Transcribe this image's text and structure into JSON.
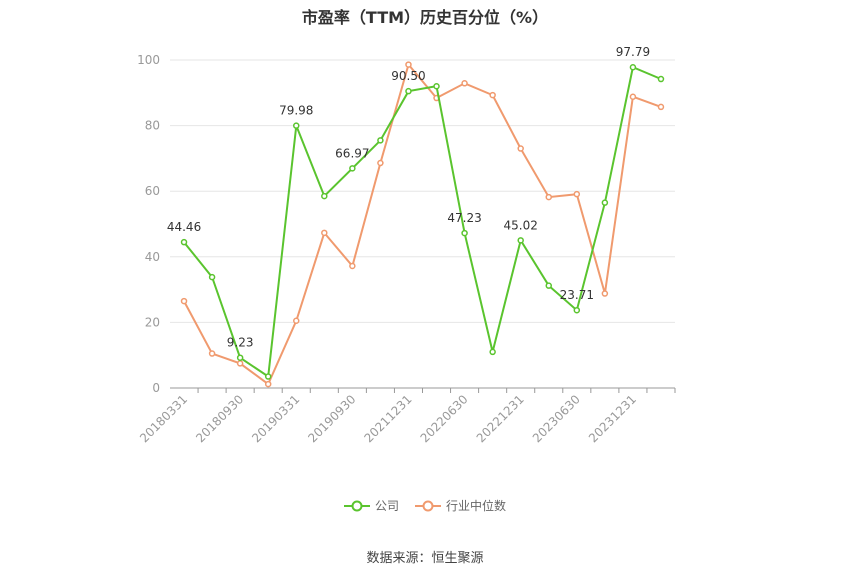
{
  "title": "市盈率（TTM）历史百分位（%）",
  "source": "数据来源：恒生聚源",
  "colors": {
    "company": "#5ac42e",
    "industry": "#f09a6e",
    "grid": "#e6e6e6",
    "axis": "#999999",
    "label": "#999999"
  },
  "chart_data": {
    "type": "line",
    "title": "市盈率（TTM）历史百分位（%）",
    "xlabel": "",
    "ylabel": "",
    "ylim": [
      0,
      100
    ],
    "yticks": [
      0,
      20,
      40,
      60,
      80,
      100
    ],
    "categories": [
      "20180331",
      "20180630",
      "20180930",
      "20181231",
      "20190331",
      "20190630",
      "20190930",
      "20191231",
      "20211231",
      "20220331",
      "20220630",
      "20220930",
      "20221231",
      "20230331",
      "20230630",
      "20230930",
      "20231231",
      "20240331"
    ],
    "tick_labels": [
      "20180331",
      "",
      "20180930",
      "",
      "20190331",
      "",
      "20190930",
      "",
      "20211231",
      "",
      "20220630",
      "",
      "20221231",
      "",
      "20230630",
      "",
      "20231231",
      ""
    ],
    "series": [
      {
        "name": "公司",
        "color": "#5ac42e",
        "values": [
          44.46,
          33.8,
          9.23,
          3.5,
          79.98,
          58.5,
          66.97,
          75.5,
          90.5,
          92.0,
          47.23,
          11.0,
          45.02,
          31.2,
          23.71,
          56.5,
          97.79,
          94.2
        ]
      },
      {
        "name": "行业中位数",
        "color": "#f09a6e",
        "values": [
          26.5,
          10.5,
          7.5,
          1.2,
          20.5,
          47.3,
          37.2,
          68.6,
          98.6,
          88.4,
          92.9,
          89.3,
          73.0,
          58.2,
          59.1,
          28.8,
          88.8,
          85.7
        ]
      }
    ],
    "data_labels": [
      {
        "series": 0,
        "index": 0,
        "text": "44.46"
      },
      {
        "series": 0,
        "index": 2,
        "text": "9.23"
      },
      {
        "series": 0,
        "index": 4,
        "text": "79.98"
      },
      {
        "series": 0,
        "index": 6,
        "text": "66.97"
      },
      {
        "series": 0,
        "index": 8,
        "text": "90.50"
      },
      {
        "series": 0,
        "index": 10,
        "text": "47.23"
      },
      {
        "series": 0,
        "index": 12,
        "text": "45.02"
      },
      {
        "series": 0,
        "index": 14,
        "text": "23.71"
      },
      {
        "series": 0,
        "index": 16,
        "text": "97.79"
      }
    ],
    "grid": true,
    "legend_position": "bottom"
  }
}
